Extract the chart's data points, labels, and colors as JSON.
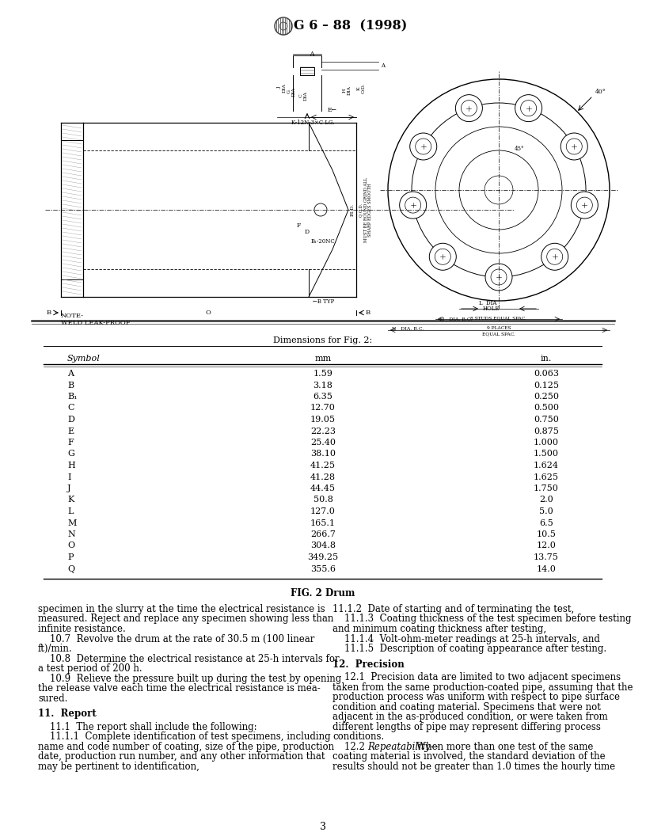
{
  "title": "G 6 – 88  (1998)",
  "fig_caption": "FIG. 2 Drum",
  "table_title": "Dimensions for Fig. 2:",
  "table_headers": [
    "Symbol",
    "mm",
    "in."
  ],
  "table_rows": [
    [
      "A",
      "1.59",
      "0.063"
    ],
    [
      "B",
      "3.18",
      "0.125"
    ],
    [
      "B₁",
      "6.35",
      "0.250"
    ],
    [
      "C",
      "12.70",
      "0.500"
    ],
    [
      "D",
      "19.05",
      "0.750"
    ],
    [
      "E",
      "22.23",
      "0.875"
    ],
    [
      "F",
      "25.40",
      "1.000"
    ],
    [
      "G",
      "38.10",
      "1.500"
    ],
    [
      "H",
      "41.25",
      "1.624"
    ],
    [
      "I",
      "41.28",
      "1.625"
    ],
    [
      "J",
      "44.45",
      "1.750"
    ],
    [
      "K",
      "50.8",
      "2.0"
    ],
    [
      "L",
      "127.0",
      "5.0"
    ],
    [
      "M",
      "165.1",
      "6.5"
    ],
    [
      "N",
      "266.7",
      "10.5"
    ],
    [
      "O",
      "304.8",
      "12.0"
    ],
    [
      "P",
      "349.25",
      "13.75"
    ],
    [
      "Q",
      "355.6",
      "14.0"
    ]
  ],
  "left_col_lines": [
    "specimen in the slurry at the time the electrical resistance is",
    "measured. Reject and replace any specimen showing less than",
    "infinite resistance.",
    "    10.7  Revolve the drum at the rate of 30.5 m (100 linear",
    "ft)/min.",
    "    10.8  Determine the electrical resistance at 25-h intervals for",
    "a test period of 200 h.",
    "    10.9  Relieve the pressure built up during the test by opening",
    "the release valve each time the electrical resistance is mea-",
    "sured.",
    "",
    "11.  Report",
    "    11.1  The report shall include the following:",
    "    11.1.1  Complete identification of test specimens, including",
    "name and code number of coating, size of the pipe, production",
    "date, production run number, and any other information that",
    "may be pertinent to identification,"
  ],
  "right_col_lines": [
    "11.1.2  Date of starting and of terminating the test,",
    "    11.1.3  Coating thickness of the test specimen before testing",
    "and minimum coating thickness after testing,",
    "    11.1.4  Volt-ohm-meter readings at 25-h intervals, and",
    "    11.1.5  Description of coating appearance after testing.",
    "",
    "12.  Precision",
    "    12.1  Precision data are limited to two adjacent specimens",
    "taken from the same production-coated pipe, assuming that the",
    "production process was uniform with respect to pipe surface",
    "condition and coating material. Specimens that were not",
    "adjacent in the as-produced condition, or were taken from",
    "different lengths of pipe may represent differing process",
    "conditions.",
    "    12.2  Repeatability—When more than one test of the same",
    "coating material is involved, the standard deviation of the",
    "results should not be greater than 1.0 times the hourly time"
  ],
  "page_number": "3",
  "background_color": "#ffffff",
  "text_color": "#000000"
}
